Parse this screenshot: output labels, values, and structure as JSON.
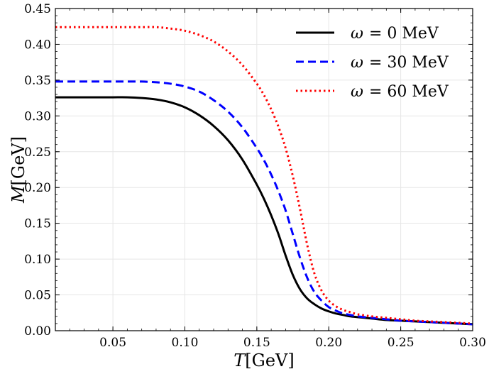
{
  "chart_data": {
    "type": "line",
    "title": "",
    "xlabel_symbol": "T",
    "xlabel_unit": "[GeV]",
    "ylabel_symbol": "M",
    "ylabel_unit": "[GeV]",
    "xlim": [
      0.01,
      0.3
    ],
    "ylim": [
      0.0,
      0.45
    ],
    "grid": true,
    "legend_position": "top-right",
    "x_ticks": [
      0.05,
      0.1,
      0.15,
      0.2,
      0.25,
      0.3
    ],
    "x_tick_labels": [
      "0.05",
      "0.10",
      "0.15",
      "0.20",
      "0.25",
      "0.30"
    ],
    "y_ticks": [
      0.0,
      0.05,
      0.1,
      0.15,
      0.2,
      0.25,
      0.3,
      0.35,
      0.4,
      0.45
    ],
    "y_tick_labels": [
      "0.00",
      "0.05",
      "0.10",
      "0.15",
      "0.20",
      "0.25",
      "0.30",
      "0.35",
      "0.40",
      "0.45"
    ],
    "x": [
      0.01,
      0.02,
      0.03,
      0.04,
      0.05,
      0.06,
      0.07,
      0.08,
      0.09,
      0.1,
      0.11,
      0.12,
      0.13,
      0.14,
      0.15,
      0.155,
      0.16,
      0.165,
      0.17,
      0.175,
      0.18,
      0.185,
      0.19,
      0.195,
      0.2,
      0.205,
      0.21,
      0.215,
      0.22,
      0.23,
      0.24,
      0.25,
      0.26,
      0.27,
      0.28,
      0.29,
      0.3
    ],
    "series": [
      {
        "name": "ω = 0 MeV",
        "omega_label": "ω",
        "value_label": "= 0 MeV",
        "color": "#000000",
        "style": "solid",
        "values": [
          0.326,
          0.326,
          0.326,
          0.326,
          0.326,
          0.326,
          0.325,
          0.323,
          0.319,
          0.312,
          0.301,
          0.286,
          0.266,
          0.239,
          0.204,
          0.184,
          0.161,
          0.135,
          0.105,
          0.078,
          0.058,
          0.045,
          0.037,
          0.031,
          0.027,
          0.024,
          0.022,
          0.02,
          0.019,
          0.017,
          0.015,
          0.014,
          0.013,
          0.012,
          0.011,
          0.01,
          0.009
        ]
      },
      {
        "name": "ω = 30 MeV",
        "omega_label": "ω",
        "value_label": "= 30 MeV",
        "color": "#0000ff",
        "style": "dashed",
        "values": [
          0.348,
          0.348,
          0.348,
          0.348,
          0.348,
          0.348,
          0.348,
          0.347,
          0.345,
          0.341,
          0.334,
          0.322,
          0.306,
          0.284,
          0.255,
          0.238,
          0.218,
          0.195,
          0.168,
          0.135,
          0.102,
          0.074,
          0.054,
          0.042,
          0.033,
          0.028,
          0.024,
          0.022,
          0.02,
          0.018,
          0.016,
          0.014,
          0.013,
          0.012,
          0.011,
          0.01,
          0.009
        ]
      },
      {
        "name": "ω = 60 MeV",
        "omega_label": "ω",
        "value_label": "= 60 MeV",
        "color": "#ff0000",
        "style": "dotted",
        "values": [
          0.424,
          0.424,
          0.424,
          0.424,
          0.424,
          0.424,
          0.424,
          0.424,
          0.422,
          0.419,
          0.413,
          0.404,
          0.39,
          0.371,
          0.345,
          0.329,
          0.309,
          0.285,
          0.255,
          0.216,
          0.17,
          0.12,
          0.08,
          0.056,
          0.042,
          0.034,
          0.029,
          0.026,
          0.023,
          0.02,
          0.018,
          0.016,
          0.014,
          0.013,
          0.012,
          0.011,
          0.01
        ]
      }
    ]
  }
}
